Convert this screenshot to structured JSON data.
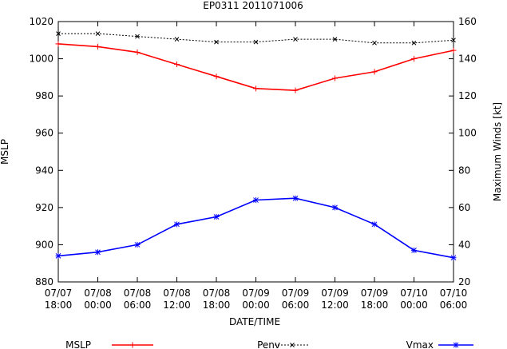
{
  "chart_data": {
    "type": "line",
    "title": "EP0311 2011071006",
    "xlabel": "DATE/TIME",
    "ylabel_left": "MSLP",
    "ylabel_right": "Maximum Winds [kt]",
    "categories": [
      [
        "07/07",
        "18:00"
      ],
      [
        "07/08",
        "00:00"
      ],
      [
        "07/08",
        "06:00"
      ],
      [
        "07/08",
        "12:00"
      ],
      [
        "07/08",
        "18:00"
      ],
      [
        "07/09",
        "00:00"
      ],
      [
        "07/09",
        "06:00"
      ],
      [
        "07/09",
        "12:00"
      ],
      [
        "07/09",
        "18:00"
      ],
      [
        "07/10",
        "00:00"
      ],
      [
        "07/10",
        "06:00"
      ]
    ],
    "ylim_left": [
      880,
      1020
    ],
    "yticks_left": [
      880,
      900,
      920,
      940,
      960,
      980,
      1000,
      1020
    ],
    "ylim_right": [
      20,
      160
    ],
    "yticks_right": [
      20,
      40,
      60,
      80,
      100,
      120,
      140,
      160
    ],
    "grid": false,
    "legend_position": "bottom",
    "series": [
      {
        "name": "MSLP",
        "axis": "left",
        "color": "#ff0000",
        "marker": "plus",
        "dash": "solid",
        "values": [
          1008,
          1006.5,
          1003.5,
          997,
          990.5,
          984,
          983,
          989.5,
          993,
          1000,
          1004.5
        ]
      },
      {
        "name": "Penv",
        "axis": "left",
        "color": "#000000",
        "marker": "x",
        "dash": "dotted",
        "values": [
          1013.5,
          1013.5,
          1012,
          1010.5,
          1009,
          1009,
          1010.5,
          1010.5,
          1008.5,
          1008.5,
          1010
        ]
      },
      {
        "name": "Vmax",
        "axis": "right",
        "color": "#0000ff",
        "marker": "star",
        "dash": "solid",
        "values": [
          34,
          36,
          40,
          51,
          55,
          64,
          65,
          60,
          51,
          37,
          33
        ]
      }
    ]
  }
}
